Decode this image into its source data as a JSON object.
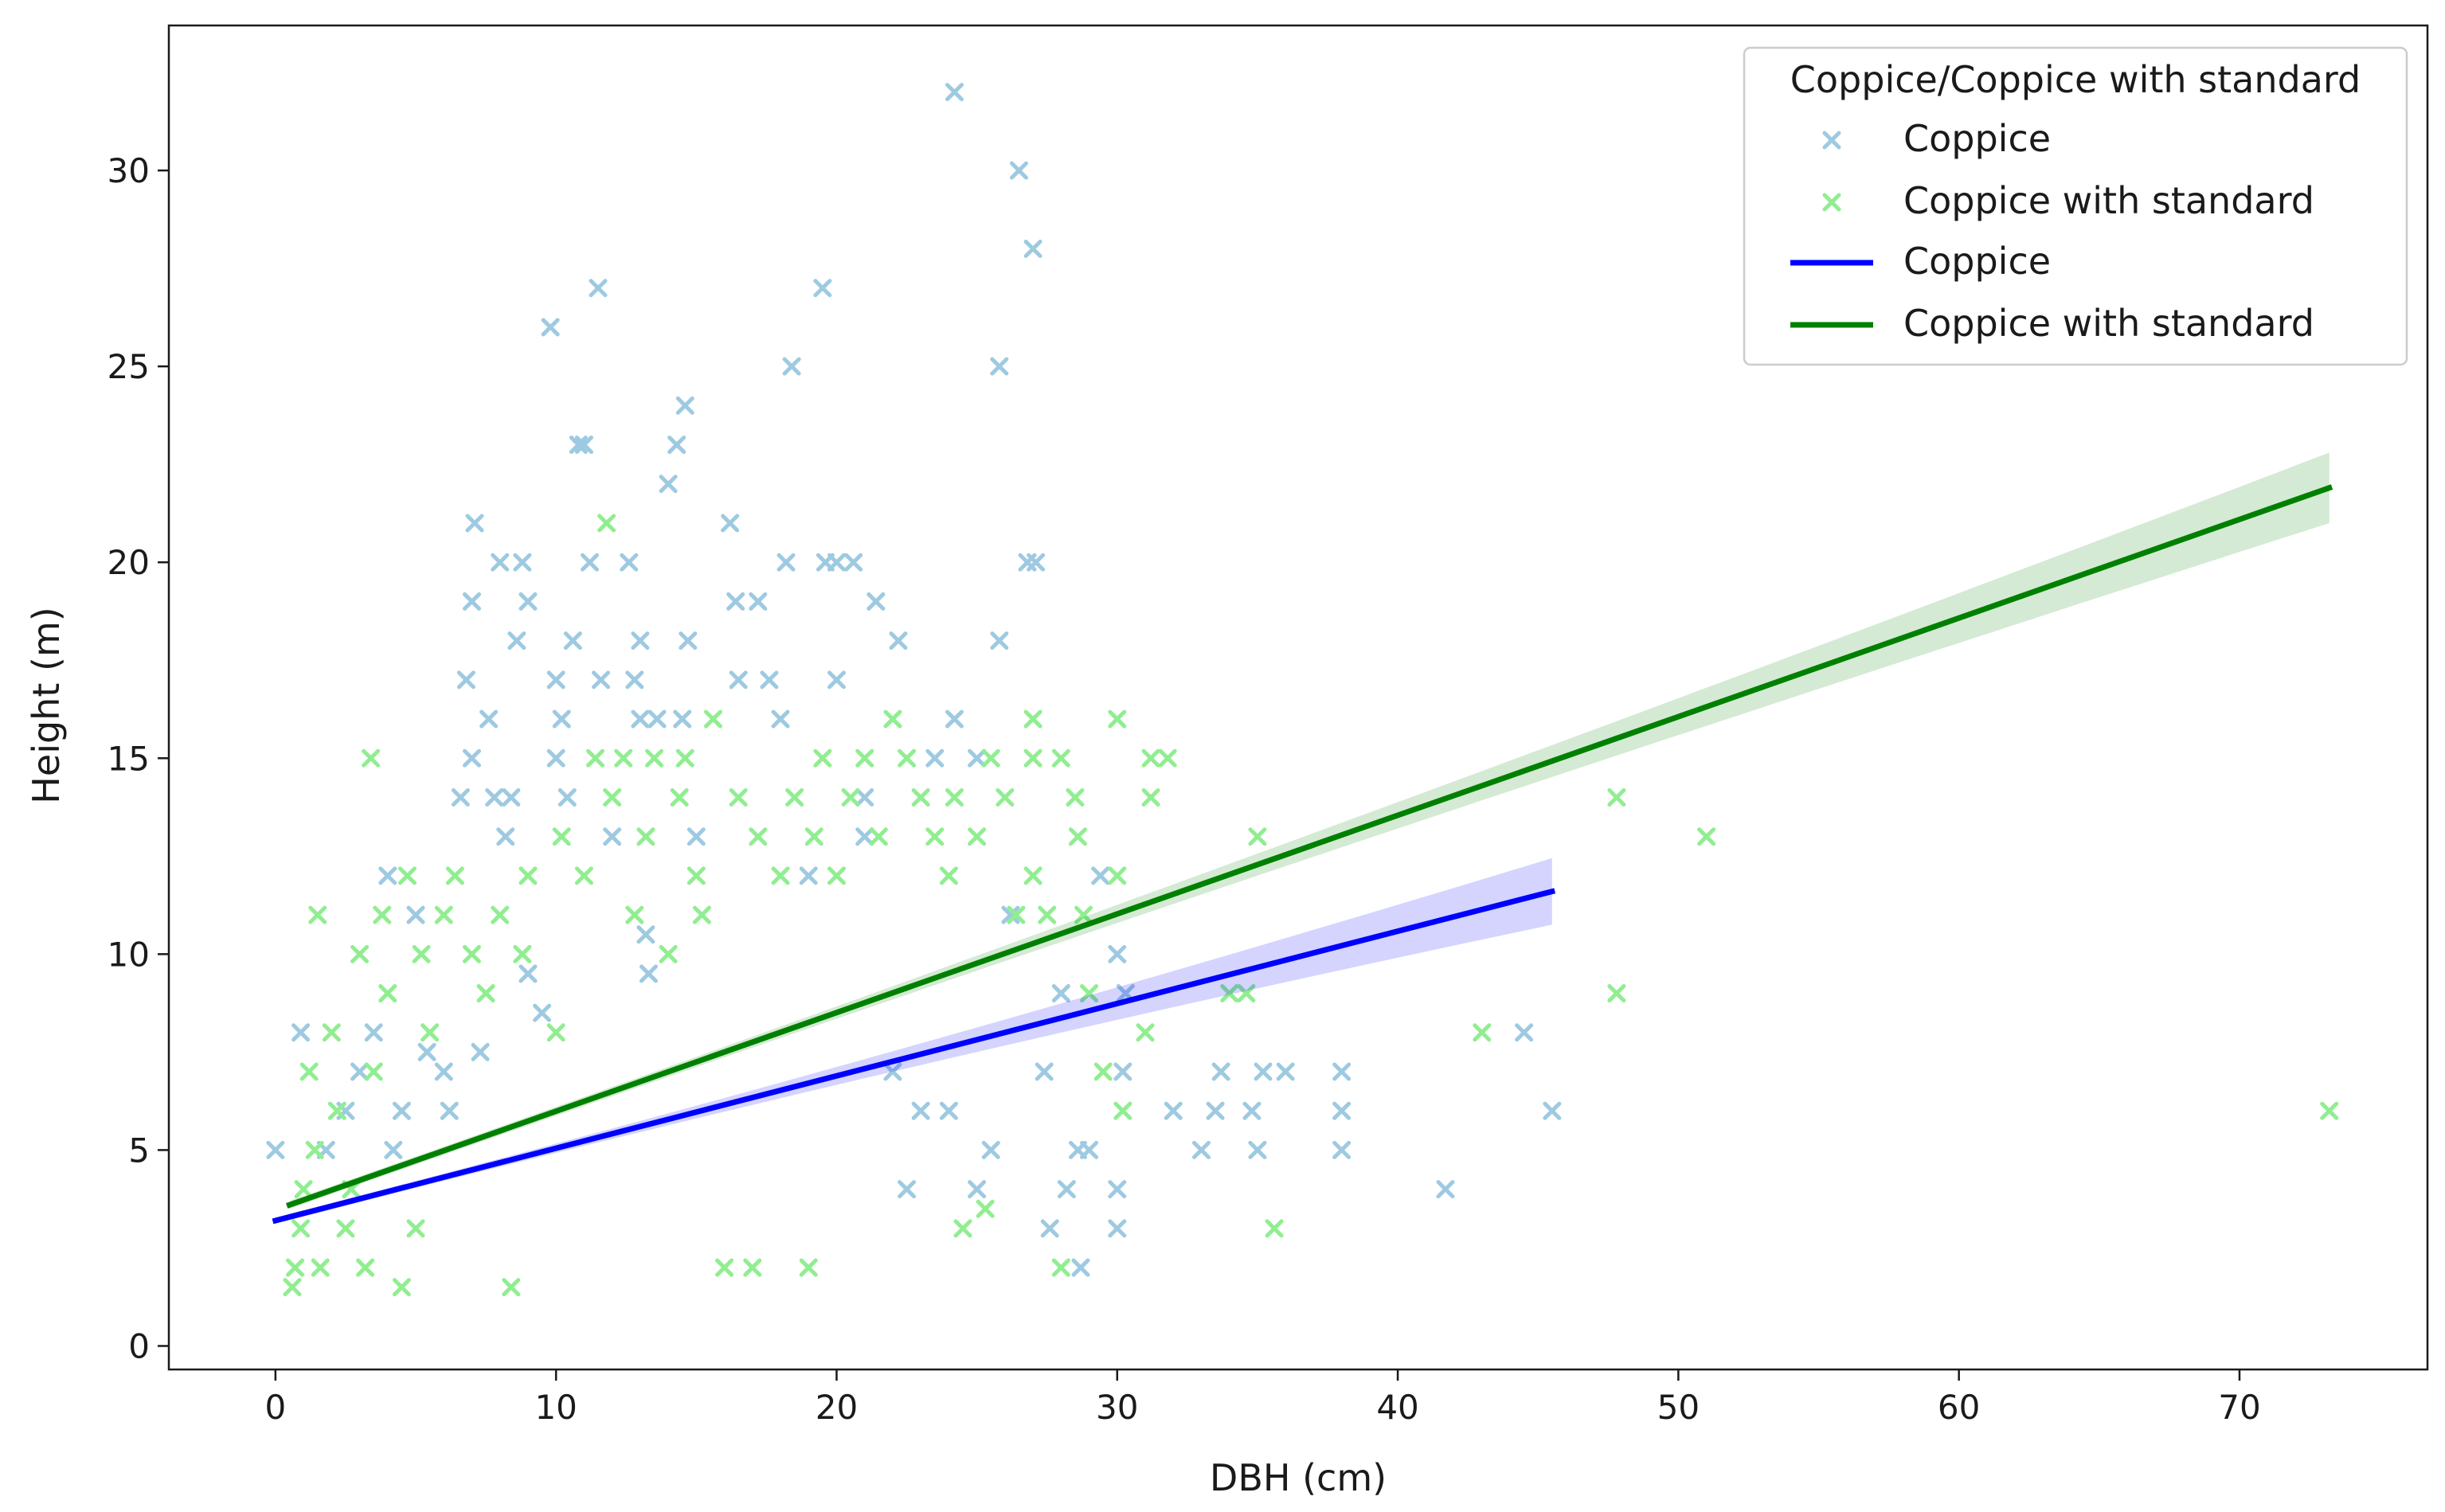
{
  "chart_data": {
    "type": "scatter",
    "title": "",
    "xlabel": "DBH (cm)",
    "ylabel": "Height (m)",
    "xlim": [
      -3.8,
      76.7
    ],
    "ylim": [
      -0.6,
      33.7
    ],
    "xticks": [
      0,
      10,
      20,
      30,
      40,
      50,
      60,
      70
    ],
    "yticks": [
      0,
      5,
      10,
      15,
      20,
      25,
      30
    ],
    "grid": false,
    "legend": {
      "title": "Coppice/Coppice with standard",
      "placement": "top-right",
      "entries": [
        {
          "label": "Coppice",
          "kind": "marker",
          "color": "#9ecae1"
        },
        {
          "label": "Coppice with standard",
          "kind": "marker",
          "color": "#90ee90"
        },
        {
          "label": "Coppice",
          "kind": "line",
          "color": "#0000ff"
        },
        {
          "label": "Coppice with standard",
          "kind": "line",
          "color": "#008000"
        }
      ]
    },
    "series": [
      {
        "name": "Coppice",
        "kind": "scatter",
        "color": "#9ecae1",
        "marker": "x",
        "points": [
          [
            0,
            5
          ],
          [
            0.9,
            8
          ],
          [
            1.8,
            5
          ],
          [
            2.5,
            6
          ],
          [
            3.0,
            7
          ],
          [
            3.5,
            8
          ],
          [
            4,
            12
          ],
          [
            4.2,
            5
          ],
          [
            4.5,
            6
          ],
          [
            5,
            11
          ],
          [
            5.4,
            7.5
          ],
          [
            6,
            7
          ],
          [
            6.2,
            6
          ],
          [
            6.6,
            14
          ],
          [
            6.8,
            17
          ],
          [
            7,
            15
          ],
          [
            7.0,
            19
          ],
          [
            7.1,
            21
          ],
          [
            7.3,
            7.5
          ],
          [
            7.6,
            16
          ],
          [
            7.8,
            14
          ],
          [
            8.0,
            20
          ],
          [
            8.2,
            13
          ],
          [
            8.4,
            14
          ],
          [
            8.6,
            18
          ],
          [
            8.8,
            20
          ],
          [
            9,
            19
          ],
          [
            9,
            9.5
          ],
          [
            9.5,
            8.5
          ],
          [
            9.8,
            26
          ],
          [
            10,
            17
          ],
          [
            10,
            15
          ],
          [
            10.2,
            16
          ],
          [
            10.4,
            14
          ],
          [
            10.6,
            18
          ],
          [
            10.8,
            23
          ],
          [
            11,
            23
          ],
          [
            11.2,
            20
          ],
          [
            11.5,
            27
          ],
          [
            11.6,
            17
          ],
          [
            12,
            13
          ],
          [
            12.6,
            20
          ],
          [
            12.8,
            17
          ],
          [
            13,
            18
          ],
          [
            13,
            16
          ],
          [
            13.2,
            10.5
          ],
          [
            13.3,
            9.5
          ],
          [
            13.6,
            16
          ],
          [
            14,
            22
          ],
          [
            14.3,
            23
          ],
          [
            14.5,
            16
          ],
          [
            14.6,
            24
          ],
          [
            14.7,
            18
          ],
          [
            15,
            13
          ],
          [
            16.2,
            21
          ],
          [
            16.4,
            19
          ],
          [
            16.5,
            17
          ],
          [
            17.2,
            19
          ],
          [
            17.6,
            17
          ],
          [
            18,
            16
          ],
          [
            18.2,
            20
          ],
          [
            18.4,
            25
          ],
          [
            19,
            12
          ],
          [
            19.5,
            27
          ],
          [
            19.6,
            20
          ],
          [
            20,
            17
          ],
          [
            20,
            20
          ],
          [
            20.6,
            20
          ],
          [
            21,
            14
          ],
          [
            21,
            13
          ],
          [
            21.4,
            19
          ],
          [
            22,
            7
          ],
          [
            22.2,
            18
          ],
          [
            22.5,
            4
          ],
          [
            23,
            6
          ],
          [
            23.5,
            15
          ],
          [
            24,
            6
          ],
          [
            24.2,
            32
          ],
          [
            24.2,
            16
          ],
          [
            25,
            15
          ],
          [
            25,
            4
          ],
          [
            25.5,
            5
          ],
          [
            25.8,
            25
          ],
          [
            25.8,
            18
          ],
          [
            26.2,
            11
          ],
          [
            26.5,
            30
          ],
          [
            26.8,
            20
          ],
          [
            27,
            28
          ],
          [
            27.1,
            20
          ],
          [
            27.4,
            7
          ],
          [
            27.6,
            3
          ],
          [
            28,
            9
          ],
          [
            28.2,
            4
          ],
          [
            28.6,
            5
          ],
          [
            28.7,
            2
          ],
          [
            29,
            5
          ],
          [
            29.4,
            12
          ],
          [
            30,
            4
          ],
          [
            30,
            3
          ],
          [
            30,
            10
          ],
          [
            30.3,
            9
          ],
          [
            30.2,
            7
          ],
          [
            32,
            6
          ],
          [
            33,
            5
          ],
          [
            33.5,
            6
          ],
          [
            33.7,
            7
          ],
          [
            34.8,
            6
          ],
          [
            35.2,
            7
          ],
          [
            35,
            5
          ],
          [
            36,
            7
          ],
          [
            38,
            7
          ],
          [
            38,
            6
          ],
          [
            38,
            5
          ],
          [
            41.7,
            4
          ],
          [
            44.5,
            8
          ],
          [
            45.5,
            6
          ]
        ]
      },
      {
        "name": "Coppice with standard",
        "kind": "scatter",
        "color": "#90ee90",
        "marker": "x",
        "points": [
          [
            0.6,
            1.5
          ],
          [
            0.7,
            2
          ],
          [
            0.9,
            3
          ],
          [
            1,
            4
          ],
          [
            1.2,
            7
          ],
          [
            1.4,
            5
          ],
          [
            1.5,
            11
          ],
          [
            1.6,
            2
          ],
          [
            2,
            8
          ],
          [
            2.2,
            6
          ],
          [
            2.5,
            3
          ],
          [
            2.7,
            4
          ],
          [
            3,
            10
          ],
          [
            3.2,
            2
          ],
          [
            3.4,
            15
          ],
          [
            3.5,
            7
          ],
          [
            3.8,
            11
          ],
          [
            4,
            9
          ],
          [
            4.5,
            1.5
          ],
          [
            4.7,
            12
          ],
          [
            5,
            3
          ],
          [
            5.2,
            10
          ],
          [
            5.5,
            8
          ],
          [
            6,
            11
          ],
          [
            6.4,
            12
          ],
          [
            7,
            10
          ],
          [
            7.5,
            9
          ],
          [
            8,
            11
          ],
          [
            8.4,
            1.5
          ],
          [
            8.8,
            10
          ],
          [
            9,
            12
          ],
          [
            10,
            8
          ],
          [
            10.2,
            13
          ],
          [
            11,
            12
          ],
          [
            11.4,
            15
          ],
          [
            11.8,
            21
          ],
          [
            12,
            14
          ],
          [
            12.4,
            15
          ],
          [
            12.8,
            11
          ],
          [
            13.2,
            13
          ],
          [
            13.5,
            15
          ],
          [
            14,
            10
          ],
          [
            14.4,
            14
          ],
          [
            14.6,
            15
          ],
          [
            15,
            12
          ],
          [
            15.2,
            11
          ],
          [
            15.6,
            16
          ],
          [
            16,
            2
          ],
          [
            16.5,
            14
          ],
          [
            17,
            2
          ],
          [
            17.2,
            13
          ],
          [
            18,
            12
          ],
          [
            18.5,
            14
          ],
          [
            19,
            2
          ],
          [
            19.2,
            13
          ],
          [
            19.5,
            15
          ],
          [
            20,
            12
          ],
          [
            20.5,
            14
          ],
          [
            21,
            15
          ],
          [
            21.5,
            13
          ],
          [
            22,
            16
          ],
          [
            22.5,
            15
          ],
          [
            23,
            14
          ],
          [
            23.5,
            13
          ],
          [
            24,
            12
          ],
          [
            24.2,
            14
          ],
          [
            24.5,
            3
          ],
          [
            25,
            13
          ],
          [
            25.3,
            3.5
          ],
          [
            25.5,
            15
          ],
          [
            26,
            14
          ],
          [
            26.4,
            11
          ],
          [
            27,
            16
          ],
          [
            27,
            15
          ],
          [
            27,
            12
          ],
          [
            27.5,
            11
          ],
          [
            28,
            15
          ],
          [
            28,
            2
          ],
          [
            28.5,
            14
          ],
          [
            28.6,
            13
          ],
          [
            28.8,
            11
          ],
          [
            29,
            9
          ],
          [
            29.5,
            7
          ],
          [
            30,
            16
          ],
          [
            30,
            12
          ],
          [
            30.2,
            6
          ],
          [
            31,
            8
          ],
          [
            31.2,
            15
          ],
          [
            31.2,
            14
          ],
          [
            31.8,
            15
          ],
          [
            34,
            9
          ],
          [
            34.6,
            9
          ],
          [
            35,
            13
          ],
          [
            35.6,
            3
          ],
          [
            43,
            8
          ],
          [
            47.8,
            14
          ],
          [
            47.8,
            9
          ],
          [
            51,
            13
          ],
          [
            73.2,
            6
          ]
        ]
      },
      {
        "name": "Coppice",
        "kind": "regression",
        "color": "#0000ff",
        "band_color": "#0000ff",
        "x": [
          0,
          45.5
        ],
        "y": [
          3.2,
          11.6
        ],
        "ci_halfwidth": [
          0.08,
          0.85
        ]
      },
      {
        "name": "Coppice with standard",
        "kind": "regression",
        "color": "#008000",
        "band_color": "#008000",
        "x": [
          0.5,
          73.2
        ],
        "y": [
          3.6,
          21.9
        ],
        "ci_halfwidth": [
          0.1,
          0.9
        ]
      }
    ]
  }
}
